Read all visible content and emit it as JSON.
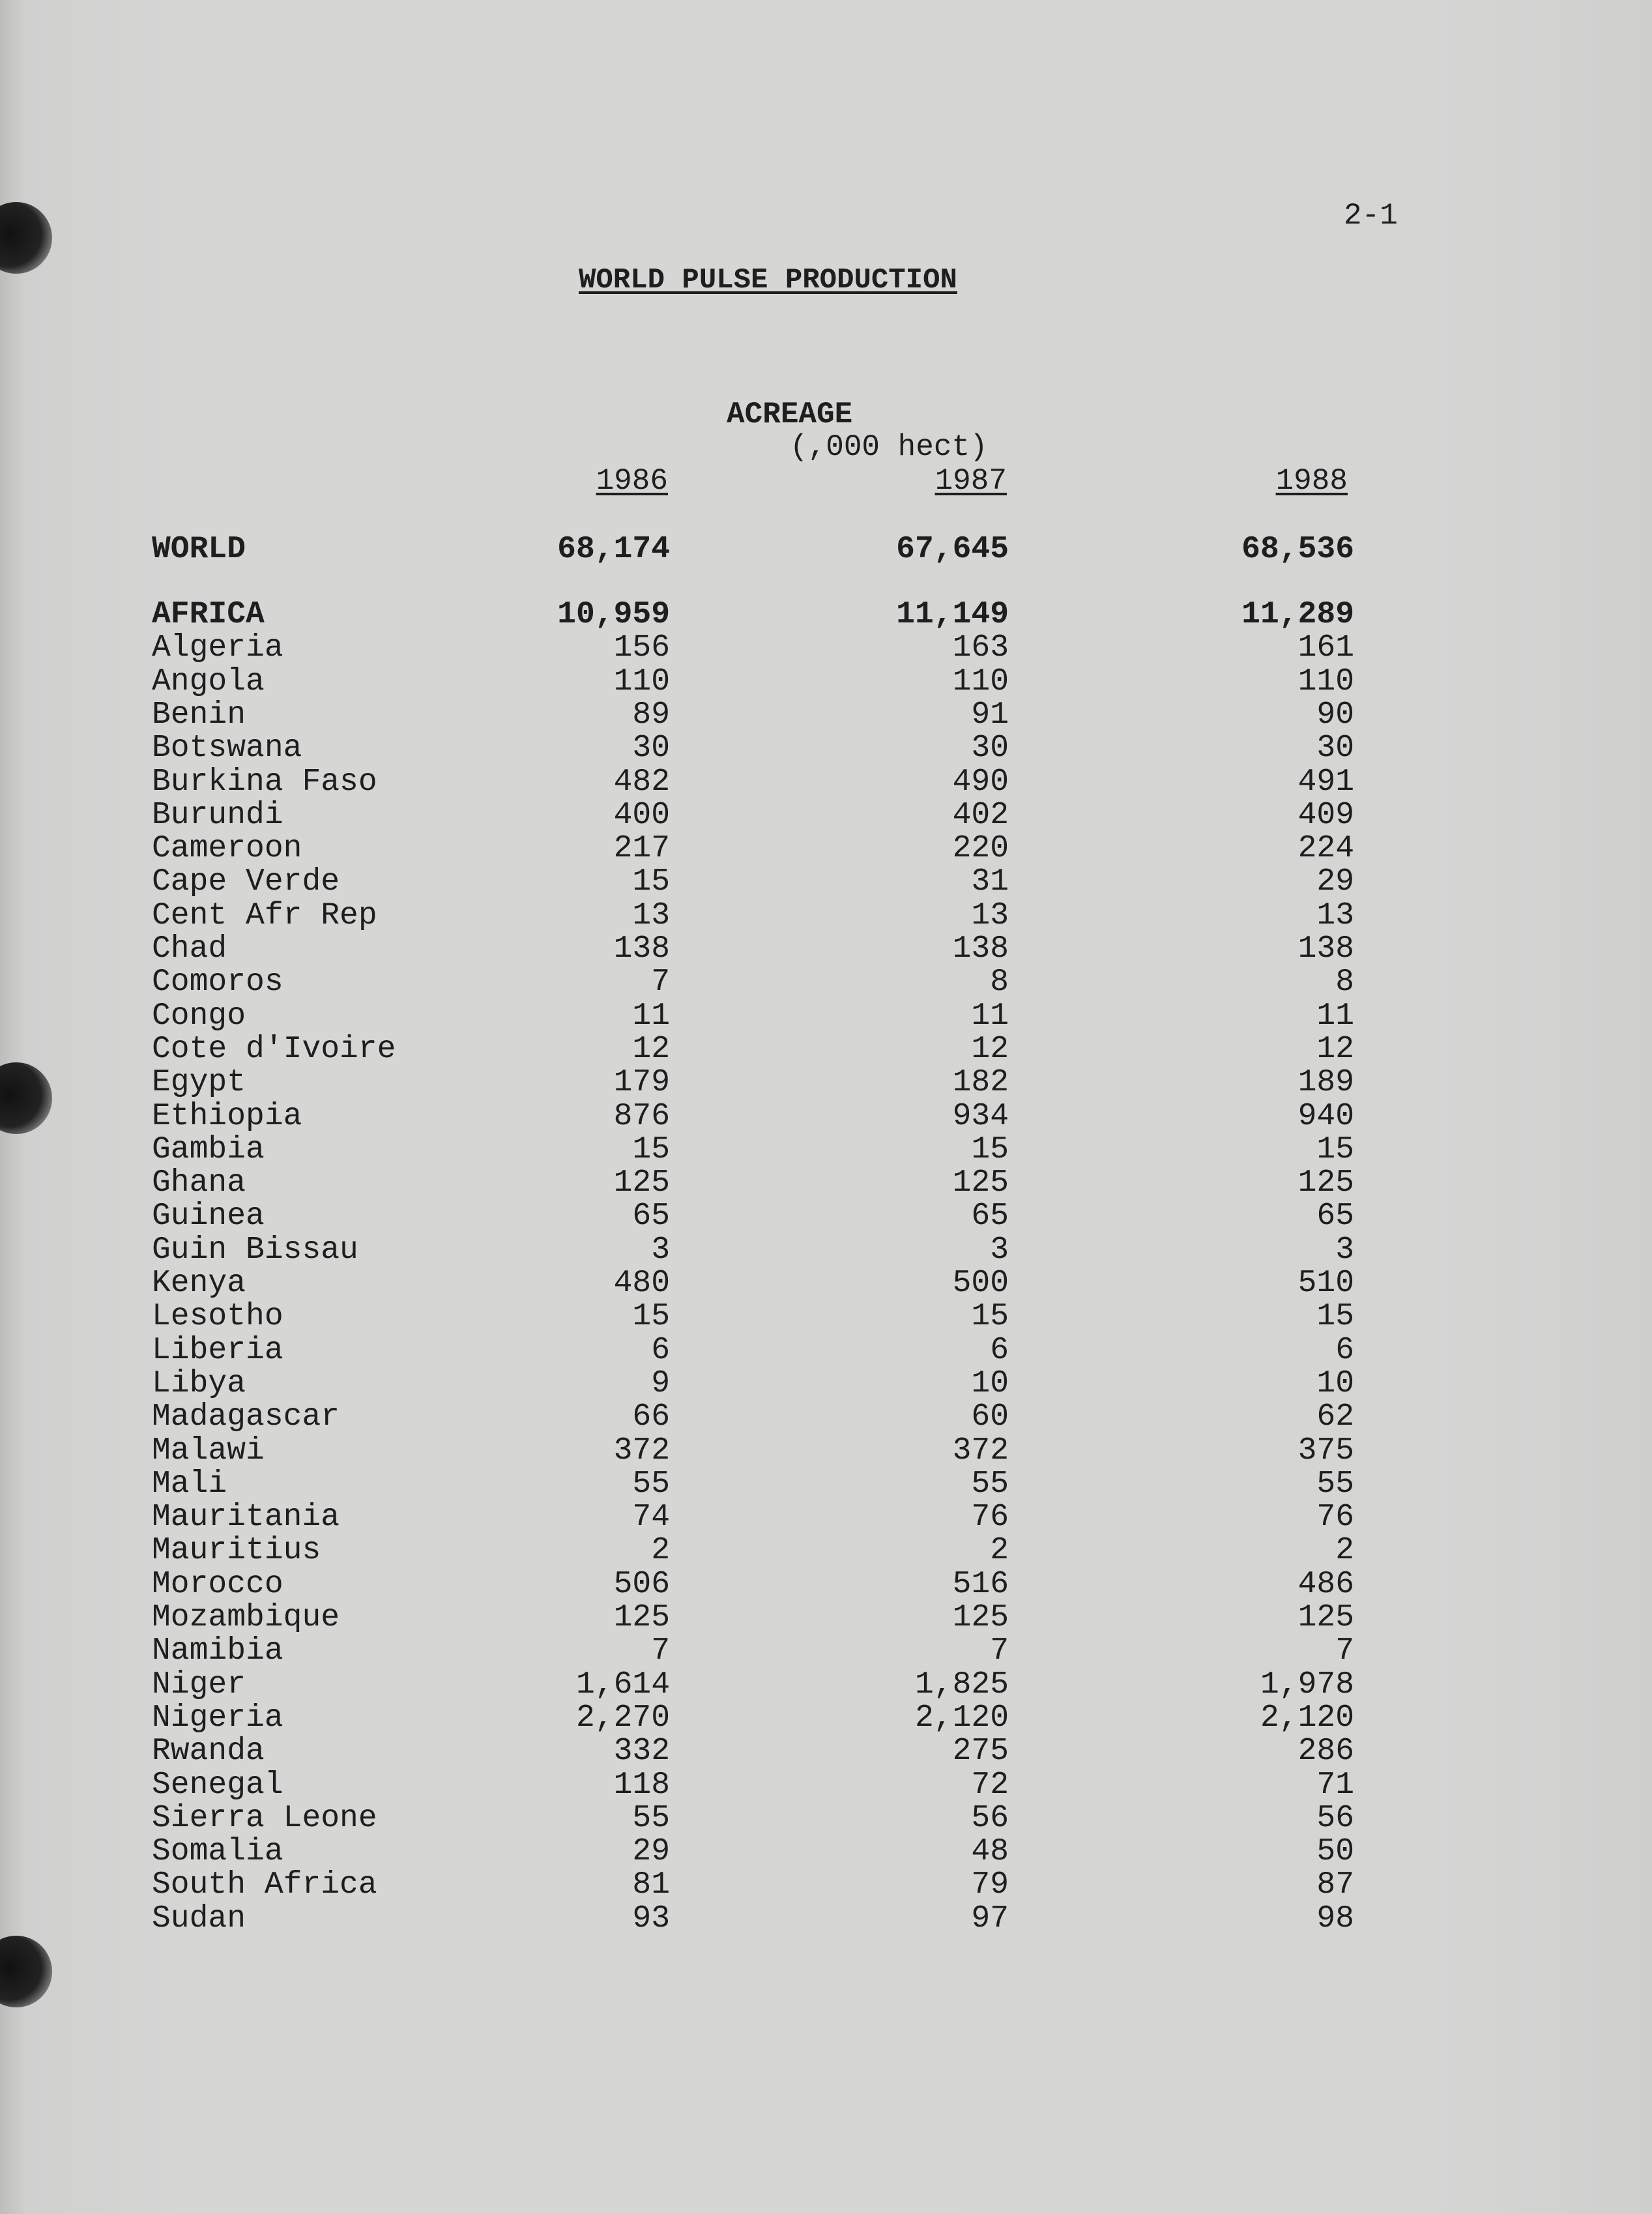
{
  "page_number": "2-1",
  "title": "WORLD PULSE PRODUCTION",
  "section": "ACREAGE",
  "unit": "(,000 hect)",
  "years": [
    "1986",
    "1987",
    "1988"
  ],
  "rows": [
    {
      "name": "WORLD",
      "values": [
        "68,174",
        "67,645",
        "68,536"
      ],
      "bold": true
    },
    {
      "name": "AFRICA",
      "values": [
        "10,959",
        "11,149",
        "11,289"
      ],
      "bold": true
    },
    {
      "name": "Algeria",
      "values": [
        "156",
        "163",
        "161"
      ]
    },
    {
      "name": "Angola",
      "values": [
        "110",
        "110",
        "110"
      ]
    },
    {
      "name": "Benin",
      "values": [
        "89",
        "91",
        "90"
      ]
    },
    {
      "name": "Botswana",
      "values": [
        "30",
        "30",
        "30"
      ]
    },
    {
      "name": "Burkina Faso",
      "values": [
        "482",
        "490",
        "491"
      ]
    },
    {
      "name": "Burundi",
      "values": [
        "400",
        "402",
        "409"
      ]
    },
    {
      "name": "Cameroon",
      "values": [
        "217",
        "220",
        "224"
      ]
    },
    {
      "name": "Cape Verde",
      "values": [
        "15",
        "31",
        "29"
      ]
    },
    {
      "name": "Cent Afr Rep",
      "values": [
        "13",
        "13",
        "13"
      ]
    },
    {
      "name": "Chad",
      "values": [
        "138",
        "138",
        "138"
      ]
    },
    {
      "name": "Comoros",
      "values": [
        "7",
        "8",
        "8"
      ]
    },
    {
      "name": "Congo",
      "values": [
        "11",
        "11",
        "11"
      ]
    },
    {
      "name": "Cote d'Ivoire",
      "values": [
        "12",
        "12",
        "12"
      ]
    },
    {
      "name": "Egypt",
      "values": [
        "179",
        "182",
        "189"
      ]
    },
    {
      "name": "Ethiopia",
      "values": [
        "876",
        "934",
        "940"
      ]
    },
    {
      "name": "Gambia",
      "values": [
        "15",
        "15",
        "15"
      ]
    },
    {
      "name": "Ghana",
      "values": [
        "125",
        "125",
        "125"
      ]
    },
    {
      "name": "Guinea",
      "values": [
        "65",
        "65",
        "65"
      ]
    },
    {
      "name": "Guin Bissau",
      "values": [
        "3",
        "3",
        "3"
      ]
    },
    {
      "name": "Kenya",
      "values": [
        "480",
        "500",
        "510"
      ]
    },
    {
      "name": "Lesotho",
      "values": [
        "15",
        "15",
        "15"
      ]
    },
    {
      "name": "Liberia",
      "values": [
        "6",
        "6",
        "6"
      ]
    },
    {
      "name": "Libya",
      "values": [
        "9",
        "10",
        "10"
      ]
    },
    {
      "name": "Madagascar",
      "values": [
        "66",
        "60",
        "62"
      ]
    },
    {
      "name": "Malawi",
      "values": [
        "372",
        "372",
        "375"
      ]
    },
    {
      "name": "Mali",
      "values": [
        "55",
        "55",
        "55"
      ]
    },
    {
      "name": "Mauritania",
      "values": [
        "74",
        "76",
        "76"
      ]
    },
    {
      "name": "Mauritius",
      "values": [
        "2",
        "2",
        "2"
      ]
    },
    {
      "name": "Morocco",
      "values": [
        "506",
        "516",
        "486"
      ]
    },
    {
      "name": "Mozambique",
      "values": [
        "125",
        "125",
        "125"
      ]
    },
    {
      "name": "Namibia",
      "values": [
        "7",
        "7",
        "7"
      ]
    },
    {
      "name": "Niger",
      "values": [
        "1,614",
        "1,825",
        "1,978"
      ]
    },
    {
      "name": "Nigeria",
      "values": [
        "2,270",
        "2,120",
        "2,120"
      ]
    },
    {
      "name": "Rwanda",
      "values": [
        "332",
        "275",
        "286"
      ]
    },
    {
      "name": "Senegal",
      "values": [
        "118",
        "72",
        "71"
      ]
    },
    {
      "name": "Sierra Leone",
      "values": [
        "55",
        "56",
        "56"
      ]
    },
    {
      "name": "Somalia",
      "values": [
        "29",
        "48",
        "50"
      ]
    },
    {
      "name": "South Africa",
      "values": [
        "81",
        "79",
        "87"
      ]
    },
    {
      "name": "Sudan",
      "values": [
        "93",
        "97",
        "98"
      ]
    }
  ]
}
